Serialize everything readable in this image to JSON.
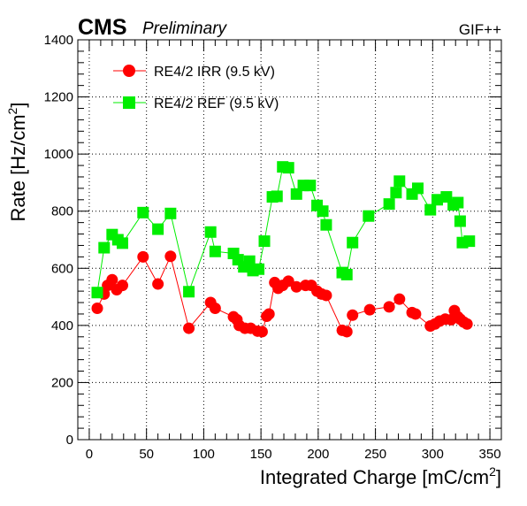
{
  "header": {
    "experiment": "CMS",
    "status": "Preliminary",
    "facility": "GIF++"
  },
  "chart_data": {
    "type": "line",
    "title": "",
    "xlabel": "Integrated Charge [mC/cm",
    "xlabel_unit_exponent": "2",
    "xlabel_suffix": "]",
    "ylabel": "Rate [Hz/cm",
    "ylabel_unit_exponent": "2",
    "ylabel_suffix": "]",
    "xlim": [
      -10,
      360
    ],
    "ylim": [
      0,
      1400
    ],
    "x_ticks": [
      0,
      50,
      100,
      150,
      200,
      250,
      300,
      350
    ],
    "x_tick_labels": [
      "0",
      "50",
      "100",
      "150",
      "200",
      "250",
      "300",
      "350"
    ],
    "y_ticks": [
      0,
      200,
      400,
      600,
      800,
      1000,
      1200,
      1400
    ],
    "y_tick_labels": [
      "0",
      "200",
      "400",
      "600",
      "800",
      "1000",
      "1200",
      "1400"
    ],
    "grid": true,
    "legend_position": "top-left",
    "series": [
      {
        "name": "RE4/2 IRR (9.5 kV)",
        "color": "#ff0000",
        "marker": "circle",
        "x": [
          7,
          13,
          16,
          20,
          24,
          29,
          47,
          60,
          71,
          87,
          106,
          110,
          126,
          129,
          131,
          136,
          141,
          147,
          151,
          155,
          157,
          162,
          165,
          169,
          174,
          181,
          189,
          194,
          199,
          203,
          207,
          221,
          225,
          230,
          245,
          262,
          271,
          282,
          285,
          298,
          302,
          306,
          311,
          316,
          319,
          322,
          324,
          327,
          330
        ],
        "y": [
          460,
          510,
          540,
          560,
          525,
          540,
          640,
          545,
          642,
          390,
          480,
          460,
          430,
          420,
          400,
          390,
          390,
          380,
          378,
          432,
          440,
          550,
          530,
          540,
          555,
          535,
          540,
          540,
          520,
          510,
          505,
          383,
          378,
          436,
          455,
          465,
          492,
          445,
          440,
          398,
          405,
          415,
          422,
          420,
          452,
          430,
          422,
          412,
          405
        ]
      },
      {
        "name": "RE4/2 REF (9.5 kV)",
        "color": "#00ee00",
        "marker": "square",
        "x": [
          7,
          13,
          20,
          25,
          29,
          47,
          60,
          71,
          87,
          106,
          110,
          126,
          130,
          135,
          140,
          143,
          148,
          153,
          160,
          164,
          169,
          174,
          181,
          187,
          193,
          199,
          204,
          207,
          221,
          225,
          230,
          244,
          262,
          268,
          271,
          282,
          287,
          298,
          304,
          312,
          318,
          322,
          324,
          326,
          332
        ],
        "y": [
          515,
          672,
          718,
          700,
          688,
          795,
          737,
          792,
          518,
          727,
          659,
          652,
          630,
          605,
          625,
          592,
          597,
          695,
          850,
          852,
          955,
          952,
          860,
          890,
          890,
          820,
          800,
          752,
          585,
          578,
          690,
          783,
          825,
          865,
          905,
          860,
          880,
          805,
          840,
          850,
          822,
          830,
          765,
          690,
          695
        ]
      }
    ]
  }
}
